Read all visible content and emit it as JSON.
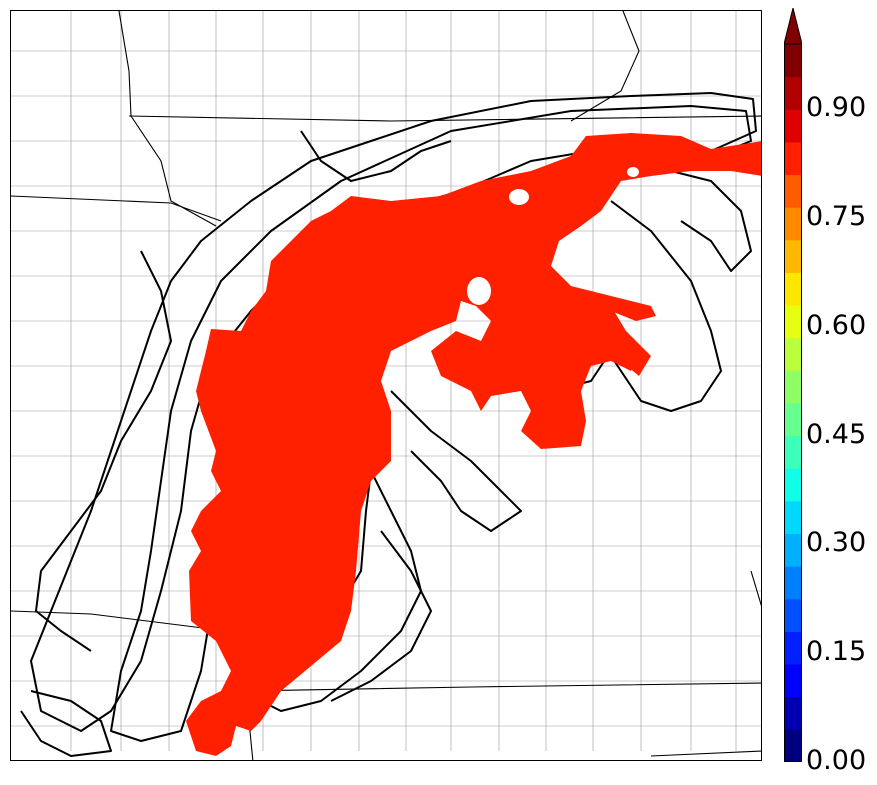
{
  "map": {
    "filled_field": {
      "category": "0.90 and above",
      "color": "#ff2000"
    },
    "contours": {
      "color": "#000000",
      "style": "solid"
    },
    "background": "#ffffff",
    "boundaries": {
      "state": "#000000",
      "county": "#999999"
    }
  },
  "colorbar": {
    "min": 0.0,
    "max": 0.99,
    "extend": "max",
    "tick_labels": [
      "0.00",
      "0.15",
      "0.30",
      "0.45",
      "0.60",
      "0.75",
      "0.90"
    ],
    "colors": [
      "#00007f",
      "#0000b2",
      "#0000ff",
      "#0020ff",
      "#0050ff",
      "#0080ff",
      "#00b0ff",
      "#00d8ff",
      "#10ffe6",
      "#3cffba",
      "#66ff90",
      "#90ff66",
      "#baff3c",
      "#e6ff10",
      "#ffe600",
      "#ffb800",
      "#ff8a00",
      "#ff5c00",
      "#ff2000",
      "#e00000",
      "#b00000",
      "#800000"
    ]
  }
}
